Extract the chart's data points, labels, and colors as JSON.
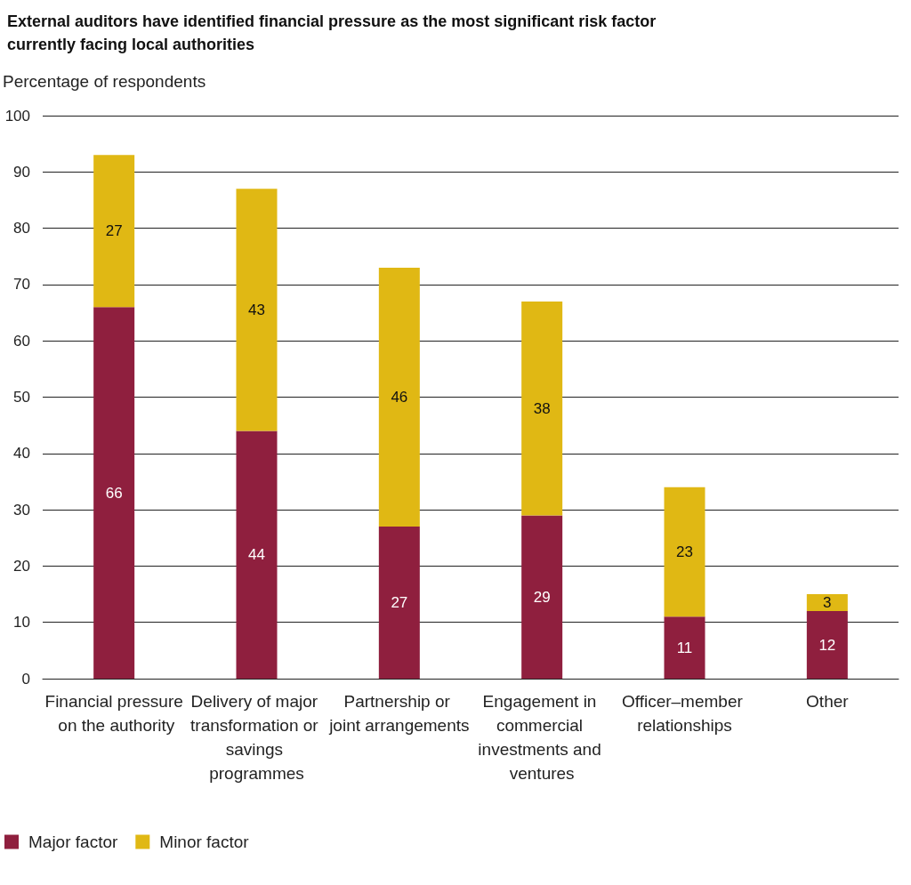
{
  "chart_data": {
    "type": "bar",
    "title": "External auditors have identified financial pressure as the most significant risk factor currently facing local authorities",
    "ylabel": "Percentage of respondents",
    "categories": [
      "Financial pressure on the authority",
      "Delivery of major transformation or savings programmes",
      "Partnership or joint arrangements",
      "Engagement in commercial investments and ventures",
      "Officer–member relationships",
      "Other"
    ],
    "series": [
      {
        "name": "Major factor",
        "color": "#8f1f3e",
        "values": [
          66,
          44,
          27,
          29,
          11,
          12
        ]
      },
      {
        "name": "Minor factor",
        "color": "#e0b814",
        "values": [
          27,
          43,
          46,
          38,
          23,
          3
        ]
      }
    ],
    "stacked": true,
    "data_labels": true,
    "ylim": [
      0,
      100
    ],
    "yticks": [
      0,
      10,
      20,
      30,
      40,
      50,
      60,
      70,
      80,
      90,
      100
    ],
    "grid": "y",
    "legend": "bottom left"
  }
}
